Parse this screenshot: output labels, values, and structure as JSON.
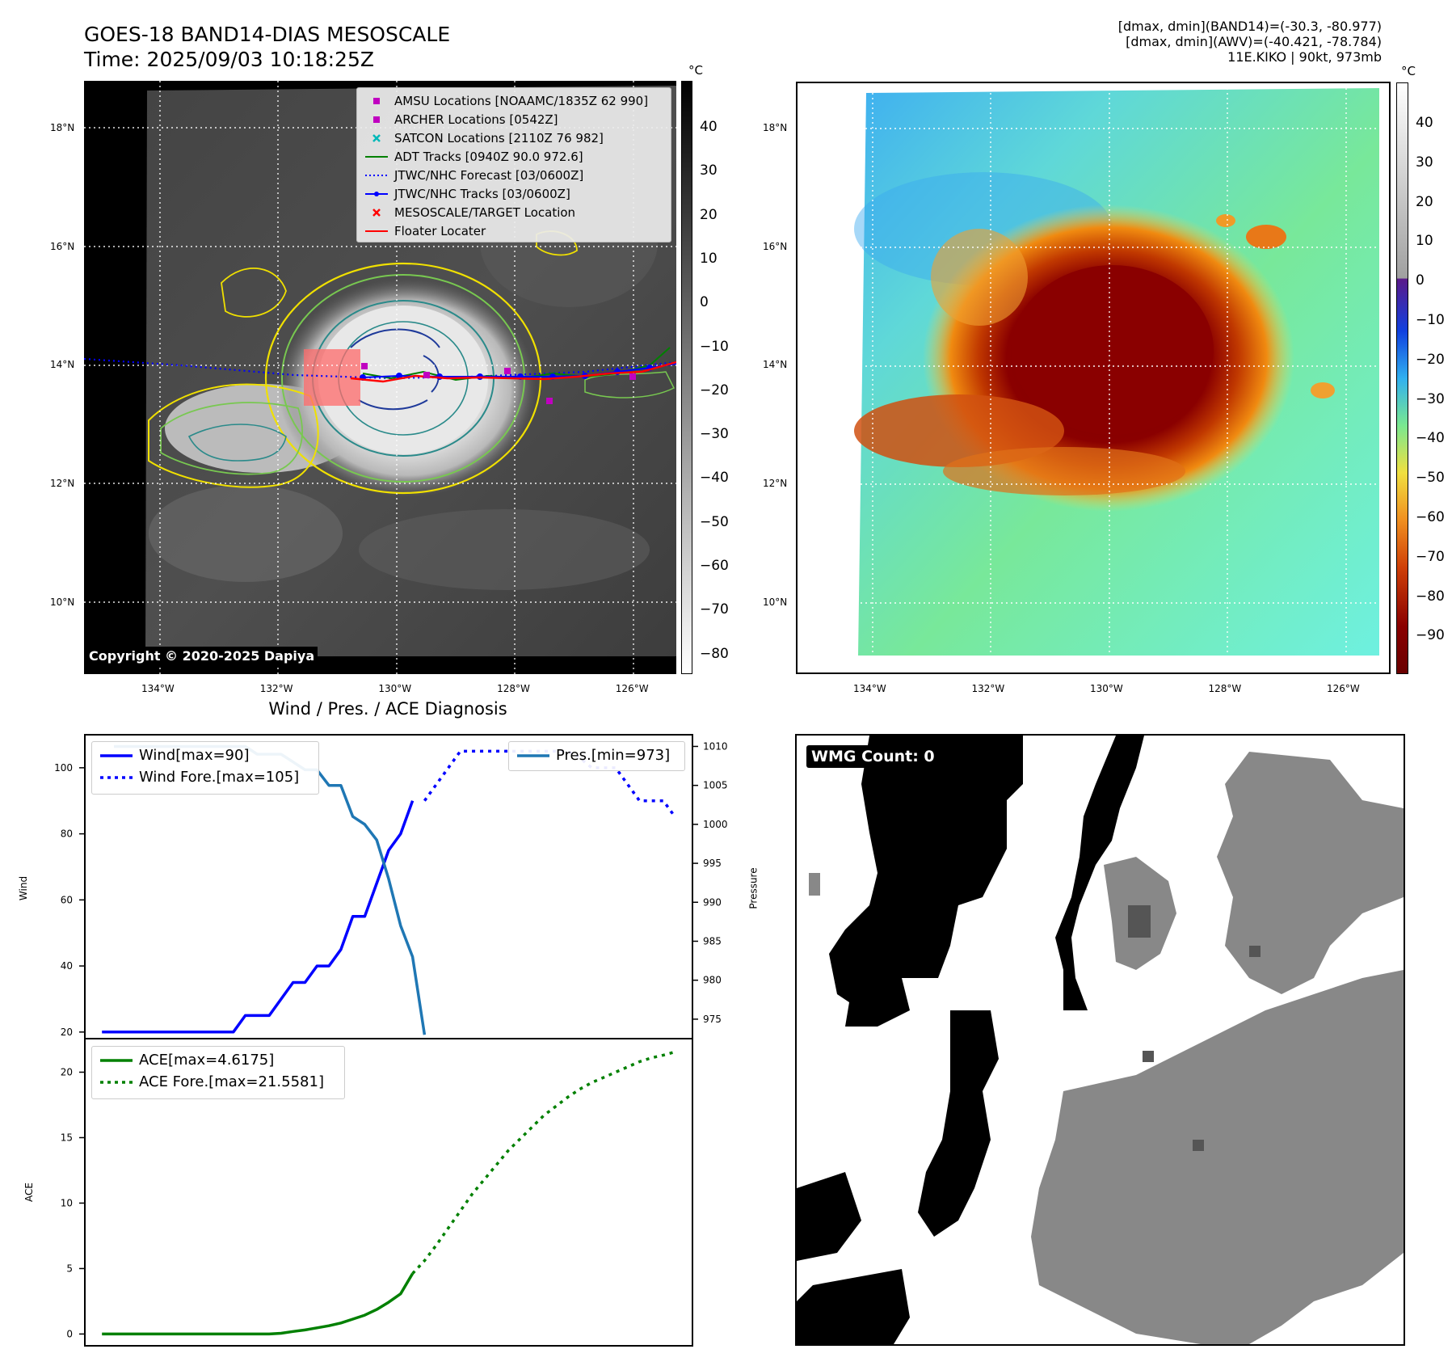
{
  "header": {
    "title_line1": "GOES-18 BAND14-DIAS MESOSCALE",
    "title_line2": "Time: 2025/09/03 10:18:25Z",
    "info_line1": "[dmax, dmin](BAND14)=(-30.3, -80.977)",
    "info_line2": "[dmax, dmin](AWV)=(-40.421, -78.784)",
    "info_line3": "11E.KIKO | 90kt, 973mb"
  },
  "map_axes": {
    "lat_labels": [
      "18°N",
      "16°N",
      "14°N",
      "12°N",
      "10°N"
    ],
    "lon_labels": [
      "134°W",
      "132°W",
      "130°W",
      "128°W",
      "126°W"
    ]
  },
  "left_map": {
    "copyright": "Copyright © 2020-2025 Dapiya",
    "colorbar_unit": "°C",
    "colorbar_ticks": [
      "40",
      "30",
      "20",
      "10",
      "0",
      "−10",
      "−20",
      "−30",
      "−40",
      "−50",
      "−60",
      "−70",
      "−80"
    ],
    "legend": [
      {
        "label": "AMSU Locations [NOAAMC/1835Z 62 990]",
        "symbol": "square",
        "color": "#c000c0"
      },
      {
        "label": "ARCHER Locations [0542Z]",
        "symbol": "square",
        "color": "#c000c0"
      },
      {
        "label": "SATCON Locations [2110Z 76 982]",
        "symbol": "x",
        "color": "#00b8b8"
      },
      {
        "label": "ADT Tracks [0940Z 90.0 972.6]",
        "symbol": "line",
        "color": "#008000"
      },
      {
        "label": "JTWC/NHC Forecast [03/0600Z]",
        "symbol": "dotted",
        "color": "#0000ff"
      },
      {
        "label": "JTWC/NHC Tracks [03/0600Z]",
        "symbol": "line-dot",
        "color": "#0000ff"
      },
      {
        "label": "MESOSCALE/TARGET Location",
        "symbol": "x",
        "color": "#ff0000"
      },
      {
        "label": "Floater Locater",
        "symbol": "line",
        "color": "#ff0000"
      }
    ]
  },
  "right_map": {
    "colorbar_unit": "°C",
    "colorbar_ticks": [
      "40",
      "30",
      "20",
      "10",
      "0",
      "−10",
      "−20",
      "−30",
      "−40",
      "−50",
      "−60",
      "−70",
      "−80",
      "−90"
    ]
  },
  "diagnosis": {
    "title": "Wind / Pres. / ACE Diagnosis",
    "legend_wind": "Wind[max=90]",
    "legend_wind_fore": "Wind Fore.[max=105]",
    "legend_pres": "Pres.[min=973]",
    "legend_ace": "ACE[max=4.6175]",
    "legend_ace_fore": "ACE Fore.[max=21.5581]",
    "ylabel_wind": "Wind",
    "ylabel_pres": "Pressure",
    "ylabel_ace": "ACE"
  },
  "wmg": {
    "badge": "WMG Count: 0"
  },
  "chart_data": [
    {
      "type": "line",
      "title": "Wind / Pres. / ACE Diagnosis",
      "ylabel": "Wind",
      "ylim": [
        18,
        110
      ],
      "yticks": [
        20,
        40,
        60,
        80,
        100
      ],
      "series": [
        {
          "name": "Wind[max=90]",
          "style": "solid",
          "color": "#0000ff",
          "x": [
            0,
            1,
            2,
            3,
            4,
            5,
            6,
            7,
            8,
            9,
            10,
            11,
            12,
            13,
            14,
            15,
            16,
            17,
            18,
            19,
            20,
            21,
            22,
            23,
            24,
            25,
            26
          ],
          "values": [
            20,
            20,
            20,
            20,
            20,
            20,
            20,
            20,
            20,
            20,
            20,
            20,
            25,
            25,
            25,
            30,
            35,
            35,
            40,
            40,
            45,
            55,
            55,
            65,
            75,
            80,
            90
          ]
        },
        {
          "name": "Wind Fore.[max=105]",
          "style": "dotted",
          "color": "#0000ff",
          "x": [
            27,
            28,
            29,
            30,
            31,
            32,
            33,
            34,
            35,
            36,
            37,
            38,
            39,
            40,
            41,
            42,
            43,
            44,
            45,
            46,
            47,
            48
          ],
          "values": [
            90,
            95,
            100,
            105,
            105,
            105,
            105,
            105,
            105,
            105,
            105,
            105,
            105,
            103,
            100,
            100,
            100,
            95,
            90,
            90,
            90,
            85
          ]
        }
      ]
    },
    {
      "type": "line",
      "ylabel": "Pressure",
      "ylim": [
        972.5,
        1011.5
      ],
      "yticks": [
        975,
        980,
        985,
        990,
        995,
        1000,
        1005,
        1010
      ],
      "series": [
        {
          "name": "Pres.[min=973]",
          "style": "solid",
          "color": "#1f77b4",
          "x": [
            1,
            2,
            3,
            4,
            5,
            6,
            7,
            8,
            9,
            10,
            11,
            12,
            13,
            14,
            15,
            16,
            17,
            18,
            19,
            20,
            21,
            22,
            23,
            24,
            25,
            26,
            27
          ],
          "values": [
            1010,
            1010,
            1010,
            1010,
            1010,
            1010,
            1010,
            1010,
            1010,
            1010,
            1010,
            1010,
            1009,
            1009,
            1009,
            1008,
            1007,
            1007,
            1005,
            1005,
            1001,
            1000,
            998,
            993,
            987,
            983,
            973
          ]
        }
      ]
    },
    {
      "type": "line",
      "ylabel": "ACE",
      "ylim": [
        -0.9,
        22.5
      ],
      "yticks": [
        0,
        5,
        10,
        15,
        20
      ],
      "series": [
        {
          "name": "ACE[max=4.6175]",
          "style": "solid",
          "color": "#008000",
          "x": [
            0,
            1,
            2,
            3,
            4,
            5,
            6,
            7,
            8,
            9,
            10,
            11,
            12,
            13,
            14,
            15,
            16,
            17,
            18,
            19,
            20,
            21,
            22,
            23,
            24,
            25,
            26
          ],
          "values": [
            0,
            0,
            0,
            0,
            0,
            0,
            0,
            0,
            0,
            0,
            0,
            0,
            0,
            0,
            0,
            0.06,
            0.19,
            0.31,
            0.47,
            0.63,
            0.84,
            1.14,
            1.44,
            1.87,
            2.43,
            3.07,
            4.6175
          ]
        },
        {
          "name": "ACE Fore.[max=21.5581]",
          "style": "dotted",
          "color": "#008000",
          "x": [
            26,
            27,
            28,
            29,
            30,
            31,
            32,
            33,
            34,
            35,
            36,
            37,
            38,
            39,
            40,
            41,
            42,
            43,
            44,
            45,
            46,
            47,
            48
          ],
          "values": [
            4.6175,
            5.6,
            6.8,
            8.1,
            9.4,
            10.7,
            11.8,
            12.9,
            14.0,
            14.9,
            15.8,
            16.7,
            17.4,
            18.1,
            18.7,
            19.2,
            19.6,
            20.0,
            20.4,
            20.8,
            21.1,
            21.3,
            21.5581
          ]
        }
      ]
    }
  ]
}
